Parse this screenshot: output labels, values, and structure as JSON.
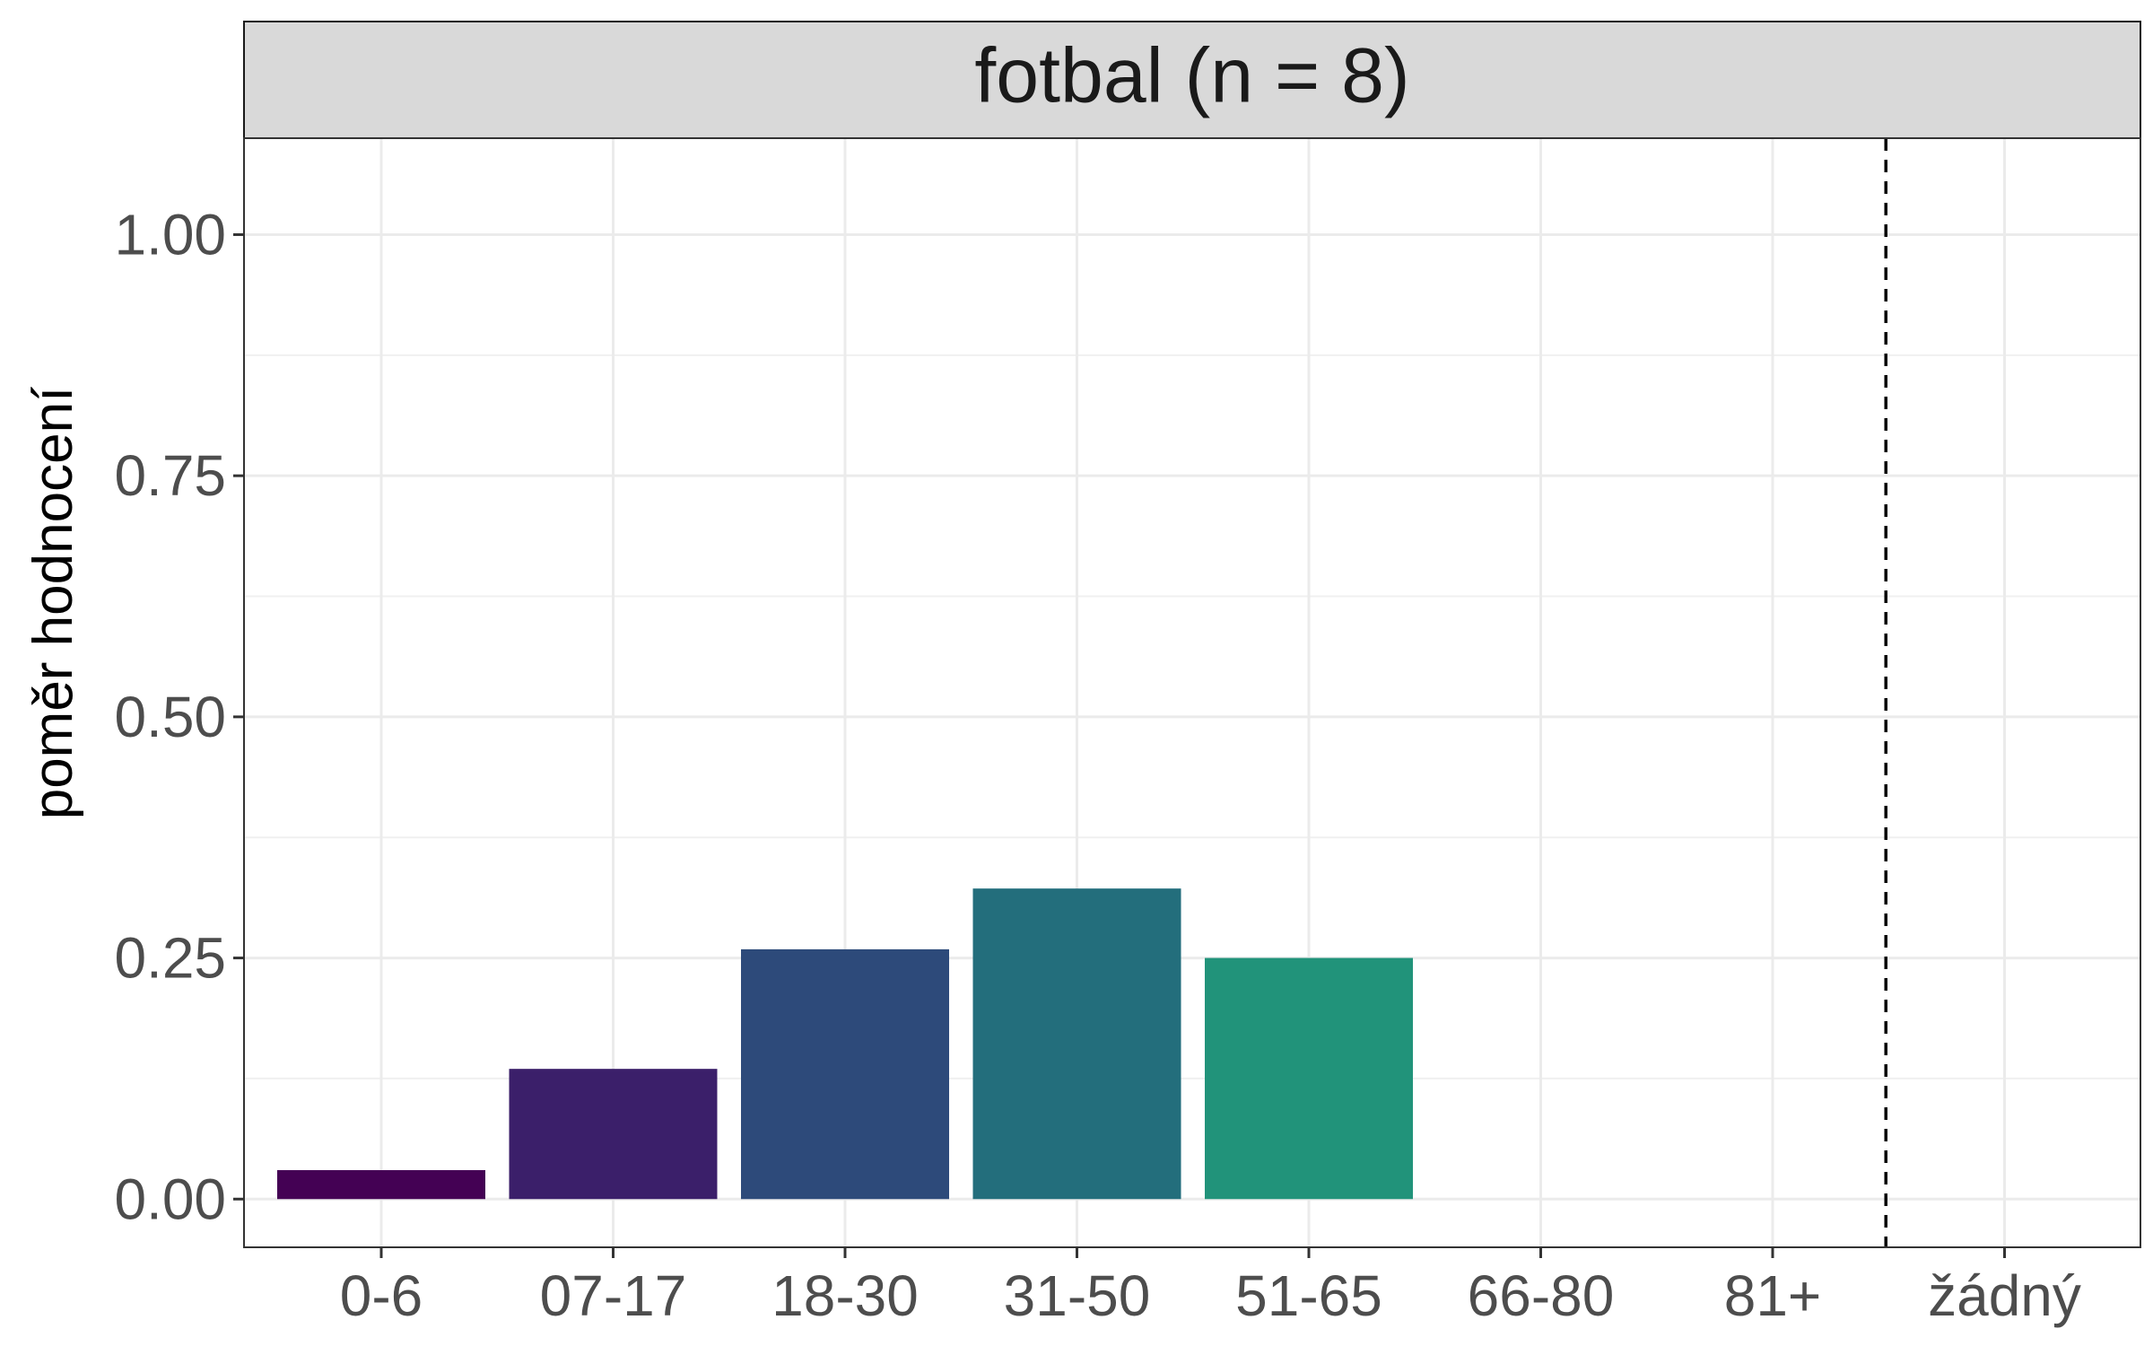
{
  "chart_data": {
    "type": "bar",
    "facet_title": "fotbal (n = 8)",
    "ylabel": "poměr hodnocení",
    "xlabel": "",
    "categories": [
      "0-6",
      "07-17",
      "18-30",
      "31-50",
      "51-65",
      "66-80",
      "81+",
      "žádný"
    ],
    "values": [
      0.03,
      0.135,
      0.259,
      0.322,
      0.25,
      0,
      0,
      0
    ],
    "colors": [
      "#440154",
      "#3b1f6a",
      "#2d4a7a",
      "#236e7c",
      "#21937a",
      "#ffffff",
      "#ffffff",
      "#ffffff"
    ],
    "ylim": [
      -0.05,
      1.1
    ],
    "yticks": [
      0.0,
      0.25,
      0.5,
      0.75,
      1.0
    ],
    "ytick_labels": [
      "0.00",
      "0.25",
      "0.50",
      "0.75",
      "1.00"
    ],
    "reference_line": {
      "between": [
        "81+",
        "žádný"
      ],
      "style": "dashed",
      "color": "#000000"
    },
    "grid": true,
    "theme": "bw"
  }
}
